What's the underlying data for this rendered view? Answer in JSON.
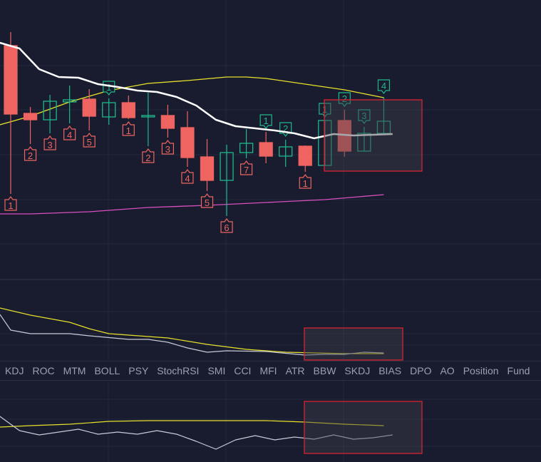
{
  "colors": {
    "up": "#1fb88a",
    "down": "#ef6461",
    "ma": "#ffffff",
    "mid": "#e8e02a",
    "low": "#d94fc0",
    "highlight": "#d9232f",
    "bg": "#181c2e"
  },
  "tabs": [
    "KDJ",
    "ROC",
    "MTM",
    "BOLL",
    "PSY",
    "StochRSI",
    "SMI",
    "CCI",
    "MFI",
    "ATR",
    "BBW",
    "SKDJ",
    "BIAS",
    "DPO",
    "AO",
    "Position",
    "Fund"
  ],
  "chart_data": {
    "type": "candlestick",
    "candles": [
      {
        "o": 336,
        "c": 240,
        "h": 355,
        "l": 128,
        "mark": "1",
        "mark_pos": "below"
      },
      {
        "o": 241,
        "c": 232,
        "h": 250,
        "l": 198,
        "mark": "2",
        "mark_pos": "below"
      },
      {
        "o": 232,
        "c": 258,
        "h": 267,
        "l": 213,
        "mark": "3",
        "mark_pos": "below"
      },
      {
        "o": 257,
        "c": 260,
        "h": 280,
        "l": 227,
        "mark": "4",
        "mark_pos": "below"
      },
      {
        "o": 261,
        "c": 237,
        "h": 275,
        "l": 217,
        "mark": "5",
        "mark_pos": "below"
      },
      {
        "o": 236,
        "c": 256,
        "h": 262,
        "l": 225,
        "mark": "1",
        "mark_pos": "above"
      },
      {
        "o": 256,
        "c": 235,
        "h": 266,
        "l": 233,
        "mark": "1",
        "mark_pos": "below"
      },
      {
        "o": 236,
        "c": 238,
        "h": 270,
        "l": 195,
        "mark": "2",
        "mark_pos": "below"
      },
      {
        "o": 238,
        "c": 220,
        "h": 253,
        "l": 207,
        "mark": "3",
        "mark_pos": "below"
      },
      {
        "o": 221,
        "c": 179,
        "h": 244,
        "l": 166,
        "mark": "4",
        "mark_pos": "below"
      },
      {
        "o": 180,
        "c": 147,
        "h": 205,
        "l": 132,
        "mark": "5",
        "mark_pos": "below"
      },
      {
        "o": 147,
        "c": 186,
        "h": 197,
        "l": 97,
        "mark": "6",
        "mark_pos": "below"
      },
      {
        "o": 186,
        "c": 199,
        "h": 219,
        "l": 178,
        "mark": "7",
        "mark_pos": "below"
      },
      {
        "o": 200,
        "c": 181,
        "h": 215,
        "l": 171,
        "mark": "1",
        "mark_pos": "above"
      },
      {
        "o": 181,
        "c": 194,
        "h": 204,
        "l": 166,
        "mark": "2",
        "mark_pos": "above"
      },
      {
        "o": 195,
        "c": 168,
        "h": 196,
        "l": 159,
        "mark": "1",
        "mark_pos": "below"
      },
      {
        "o": 168,
        "c": 231,
        "h": 231,
        "l": 168,
        "mark": "1",
        "mark_pos": "above"
      },
      {
        "o": 231,
        "c": 188,
        "h": 246,
        "l": 180,
        "mark": "2",
        "mark_pos": "above"
      },
      {
        "o": 188,
        "c": 213,
        "h": 222,
        "l": 188,
        "mark": "3",
        "mark_pos": "above"
      },
      {
        "o": 213,
        "c": 230,
        "h": 264,
        "l": 213,
        "mark": "4",
        "mark_pos": "above"
      }
    ],
    "ma": [
      340,
      332,
      303,
      292,
      291,
      282,
      278,
      273,
      271,
      264,
      252,
      232,
      223,
      220,
      217,
      213,
      206,
      212,
      210,
      211,
      212
    ],
    "upper_band": [
      225,
      237,
      257,
      273,
      283,
      287,
      292,
      292,
      290,
      282,
      274,
      263
    ],
    "upper_band_idx": [
      -0.55,
      1,
      3,
      5,
      7,
      9,
      11,
      12,
      13,
      15,
      17,
      19
    ],
    "lower_band": [
      100,
      100,
      103,
      109,
      112,
      116,
      120,
      127
    ],
    "lower_band_idx": [
      -0.55,
      1,
      4,
      7,
      10,
      13,
      16,
      19
    ],
    "osc1": {
      "yellow": [
        73,
        63,
        53,
        44,
        37,
        33,
        31,
        22,
        15,
        11,
        9,
        9
      ],
      "yellow_idx": [
        -0.55,
        1,
        3,
        4,
        5,
        7,
        8,
        10,
        12,
        14,
        17,
        19
      ],
      "white": [
        64,
        42,
        37,
        37,
        34,
        29,
        29,
        25,
        17,
        11,
        13,
        12,
        7,
        8,
        8,
        11,
        10
      ],
      "white_idx": [
        -0.55,
        0,
        1,
        3,
        4,
        6,
        7,
        8,
        9,
        10,
        11,
        13,
        15,
        16,
        17,
        18,
        19
      ]
    },
    "osc2": {
      "yellow": [
        49,
        51,
        53,
        57,
        58,
        58,
        58,
        56,
        53,
        51
      ],
      "yellow_idx": [
        -0.55,
        1,
        3,
        5,
        7,
        11,
        13,
        15,
        17,
        19
      ],
      "white": [
        64,
        44,
        38,
        42,
        46,
        39,
        42,
        39,
        44,
        39,
        29,
        18,
        31,
        37,
        31,
        35,
        32,
        38,
        32,
        34,
        38
      ]
    },
    "highlights": [
      "main",
      "osc1",
      "osc2"
    ]
  }
}
